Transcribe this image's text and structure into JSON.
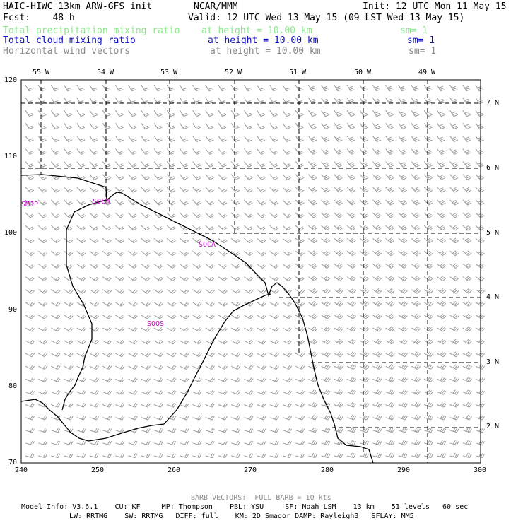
{
  "header": {
    "model_title": "HAIC-HIWC 13km ARW-GFS init",
    "org": "NCAR/MMM",
    "init": "Init: 12 UTC Mon 11 May 15",
    "fcst": "Fcst:    48 h",
    "valid": "Valid: 12 UTC Wed 13 May 15 (09 LST Wed 13 May 15)"
  },
  "fields": [
    {
      "name": "Total precipitation mixing ratio",
      "level": "at height = 10.00 km",
      "sm": "sm= 1",
      "color": "#8ee58e"
    },
    {
      "name": "Total cloud mixing ratio",
      "level": "at height = 10.00 km",
      "sm": "sm= 1",
      "color": "#1010c8"
    },
    {
      "name": "Horizontal wind vectors",
      "level": "at height = 10.00 km",
      "sm": "sm= 1",
      "color": "#8a8a8a"
    }
  ],
  "axes": {
    "x_ticks": [
      "240",
      "250",
      "260",
      "270",
      "280",
      "290",
      "300"
    ],
    "y_ticks": [
      "120",
      "110",
      "100",
      "90",
      "80",
      "70"
    ],
    "lon_labels": [
      "55 W",
      "54 W",
      "53 W",
      "52 W",
      "51 W",
      "50 W",
      "49 W"
    ],
    "lat_labels": [
      "7 N",
      "6 N",
      "5 N",
      "4 N",
      "3 N",
      "2 N"
    ]
  },
  "regions": [
    "SMJP",
    "SOCM",
    "SOCA",
    "SOOS"
  ],
  "footer": {
    "barb": "BARB VECTORS:  FULL BARB = 10 kts",
    "line1": "Model Info: V3.6.1    CU: KF     MP: Thompson    PBL: YSU     SF: Noah LSM    13 km    51 levels   60 sec",
    "line2": "LW: RRTMG    SW: RRTMG   DIFF: full    KM: 2D Smagor DAMP: Rayleigh3   SFLAY: MM5"
  }
}
